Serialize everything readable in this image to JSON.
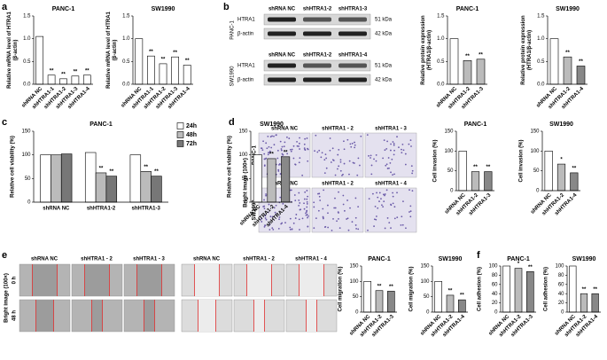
{
  "panel_labels": [
    "a",
    "b",
    "c",
    "d",
    "e",
    "f"
  ],
  "blots": [
    {
      "cell_line": "PANC-1",
      "lanes": [
        "shRNA NC",
        "shHTRA1-2",
        "shHTRA1-3"
      ],
      "rows": [
        {
          "name": "HTRA1",
          "size": "51 kDa"
        },
        {
          "name": "β-actin",
          "size": "42 kDa"
        }
      ]
    },
    {
      "cell_line": "SW1990",
      "lanes": [
        "shRNA NC",
        "shHTRA1-2",
        "shHTRA1-4"
      ],
      "rows": [
        {
          "name": "HTRA1",
          "size": "51 kDa"
        },
        {
          "name": "β-actin",
          "size": "42 kDa"
        }
      ]
    }
  ],
  "invasion_images": {
    "axis_label": "Bright image (100×)",
    "rows": [
      {
        "cell_line": "PANC-1",
        "columns": [
          "shRNA NC",
          "shHTRA1 - 2",
          "shHTRA1 - 3"
        ]
      },
      {
        "cell_line": "SW1990",
        "columns": [
          "shRNA NC",
          "shHTRA1 - 2",
          "shHTRA1 - 4"
        ]
      }
    ]
  },
  "migration_images": {
    "axis_label": "Bright image (100×)",
    "times": [
      "0 h",
      "48 h"
    ],
    "columns": [
      "shRNA NC",
      "shHTRA1 - 2",
      "shHTRA1 - 3",
      "shRNA NC",
      "shHTRA1 - 2",
      "shHTRA1 - 4"
    ]
  },
  "chart_data": [
    {
      "type": "bar",
      "title": "PANC-1",
      "y_label": [
        "Relative mRNA level of HTRA1",
        "(β-actin)"
      ],
      "categories": [
        "shRNA NC",
        "shHTRA1-1",
        "shHTRA1-2",
        "shHTRA1-3",
        "shHTRA1-4"
      ],
      "values": [
        1.05,
        0.2,
        0.12,
        0.18,
        0.2
      ],
      "colors": [
        "#ffffff",
        "#ffffff",
        "#ffffff",
        "#ffffff",
        "#ffffff"
      ],
      "significance": [
        null,
        "**",
        "**",
        "**",
        "**"
      ],
      "ylim": [
        0,
        1.5
      ],
      "yticks": [
        {
          "value": 0,
          "label": "0.0"
        },
        0.5,
        {
          "value": 1,
          "label": "1.0"
        },
        1.5
      ]
    },
    {
      "type": "bar",
      "title": "SW1990",
      "y_label": [
        "Relative mRNA level of HTRA1",
        "(β-actin)"
      ],
      "categories": [
        "shRNA NC",
        "shHTRA1-1",
        "shHTRA1-2",
        "shHTRA1-3",
        "shHTRA1-4"
      ],
      "values": [
        1.0,
        0.62,
        0.45,
        0.6,
        0.42
      ],
      "colors": [
        "#ffffff",
        "#ffffff",
        "#ffffff",
        "#ffffff",
        "#ffffff"
      ],
      "significance": [
        null,
        "**",
        "**",
        "**",
        "**"
      ],
      "ylim": [
        0,
        1.5
      ],
      "yticks": [
        {
          "value": 0,
          "label": "0.0"
        },
        0.5,
        {
          "value": 1,
          "label": "1.0"
        },
        1.5
      ]
    },
    {
      "type": "bar",
      "title": "PANC-1",
      "y_label": [
        "Relative protein expression",
        "(HTRA1/β-actin)"
      ],
      "categories": [
        "shRNA NC",
        "shHTRA1-2",
        "shHTRA1-3"
      ],
      "values": [
        1.0,
        0.52,
        0.55
      ],
      "colors": [
        "#ffffff",
        "#bbbbbb",
        "#bbbbbb"
      ],
      "significance": [
        null,
        "**",
        "**"
      ],
      "ylim": [
        0,
        1.5
      ],
      "yticks": [
        {
          "value": 0,
          "label": "0.0"
        },
        0.5,
        {
          "value": 1,
          "label": "1.0"
        },
        1.5
      ]
    },
    {
      "type": "bar",
      "title": "SW1990",
      "y_label": [
        "Relative protein expression",
        "(HTRA1/β-actin)"
      ],
      "categories": [
        "shRNA NC",
        "shHTRA1-2",
        "shHTRA1-4"
      ],
      "values": [
        1.0,
        0.6,
        0.4
      ],
      "colors": [
        "#ffffff",
        "#bbbbbb",
        "#888888"
      ],
      "significance": [
        null,
        "**",
        "**"
      ],
      "ylim": [
        0,
        1.5
      ],
      "yticks": [
        {
          "value": 0,
          "label": "0.0"
        },
        0.5,
        {
          "value": 1,
          "label": "1.0"
        },
        1.5
      ]
    },
    {
      "type": "grouped_bar",
      "title": "PANC-1",
      "y_label": "Relative cell viability (%)",
      "legend": "top-right",
      "categories": [
        "shRNA NC",
        "shHTRA1-2",
        "shHTRA1-3"
      ],
      "series": [
        {
          "name": "24h",
          "color": "#ffffff",
          "values": [
            100,
            105,
            100
          ],
          "significance": [
            null,
            null,
            null
          ]
        },
        {
          "name": "48h",
          "color": "#bbbbbb",
          "values": [
            100,
            62,
            65
          ],
          "significance": [
            null,
            "**",
            "**"
          ]
        },
        {
          "name": "72h",
          "color": "#777777",
          "values": [
            102,
            55,
            55
          ],
          "significance": [
            null,
            "**",
            "**"
          ]
        }
      ],
      "ylim": [
        0,
        150
      ],
      "yticks": [
        0,
        50,
        100,
        150
      ]
    },
    {
      "type": "bar",
      "title": "SW1990",
      "y_label": "Relative cell viability (%)",
      "categories": [
        "shRNA NC",
        "shHTRA1-2",
        "shHTRA1-4"
      ],
      "values": [
        100,
        92,
        96
      ],
      "colors": [
        "#ffffff",
        "#bbbbbb",
        "#888888"
      ],
      "significance": [
        null,
        "**",
        "**"
      ],
      "ylim": [
        0,
        150
      ],
      "yticks": [
        0,
        50,
        100,
        150
      ]
    },
    {
      "type": "bar",
      "title": "PANC-1",
      "y_label": "Cell invasion (%)",
      "categories": [
        "shRNA NC",
        "shHTRA1-2",
        "shHTRA1-3"
      ],
      "values": [
        100,
        48,
        48
      ],
      "colors": [
        "#ffffff",
        "#bbbbbb",
        "#888888"
      ],
      "significance": [
        null,
        "**",
        "**"
      ],
      "ylim": [
        0,
        150
      ],
      "yticks": [
        0,
        50,
        100,
        150
      ]
    },
    {
      "type": "bar",
      "title": "SW1990",
      "y_label": "Cell invasion (%)",
      "categories": [
        "shRNA NC",
        "shHTRA1-2",
        "shHTRA1-4"
      ],
      "values": [
        100,
        67,
        45
      ],
      "colors": [
        "#ffffff",
        "#bbbbbb",
        "#888888"
      ],
      "significance": [
        null,
        "*",
        "**"
      ],
      "ylim": [
        0,
        150
      ],
      "yticks": [
        0,
        50,
        100,
        150
      ]
    },
    {
      "type": "bar",
      "title": "PANC-1",
      "y_label": "Cell migration (%)",
      "categories": [
        "shRNA NC",
        "shHTRA1-2",
        "shHTRA1-3"
      ],
      "values": [
        100,
        70,
        68
      ],
      "colors": [
        "#ffffff",
        "#bbbbbb",
        "#888888"
      ],
      "significance": [
        null,
        "**",
        "**"
      ],
      "ylim": [
        0,
        150
      ],
      "yticks": [
        0,
        50,
        100,
        150
      ]
    },
    {
      "type": "bar",
      "title": "SW1990",
      "y_label": "Cell migration (%)",
      "categories": [
        "shRNA NC",
        "shHTRA1-2",
        "shHTRA1-4"
      ],
      "values": [
        100,
        55,
        40
      ],
      "colors": [
        "#ffffff",
        "#bbbbbb",
        "#888888"
      ],
      "significance": [
        null,
        "**",
        "**"
      ],
      "ylim": [
        0,
        150
      ],
      "yticks": [
        0,
        50,
        100,
        150
      ]
    },
    {
      "type": "bar",
      "title": "PANC-1",
      "y_label": "Cell adhesion (%)",
      "categories": [
        "shRNA NC",
        "shHTRA1-2",
        "shHTRA1-3"
      ],
      "values": [
        100,
        95,
        88
      ],
      "colors": [
        "#ffffff",
        "#bbbbbb",
        "#888888"
      ],
      "significance": [
        null,
        "*",
        "**"
      ],
      "ylim": [
        0,
        100
      ],
      "yticks": [
        0,
        20,
        40,
        60,
        80,
        100
      ]
    },
    {
      "type": "bar",
      "title": "SW1990",
      "y_label": "Cell adhesion (%)",
      "categories": [
        "shRNA NC",
        "shHTRA1-2",
        "shHTRA1-4"
      ],
      "values": [
        100,
        40,
        40
      ],
      "colors": [
        "#ffffff",
        "#bbbbbb",
        "#888888"
      ],
      "significance": [
        null,
        "**",
        "**"
      ],
      "ylim": [
        0,
        100
      ],
      "yticks": [
        0,
        20,
        40,
        60,
        80,
        100
      ]
    }
  ]
}
